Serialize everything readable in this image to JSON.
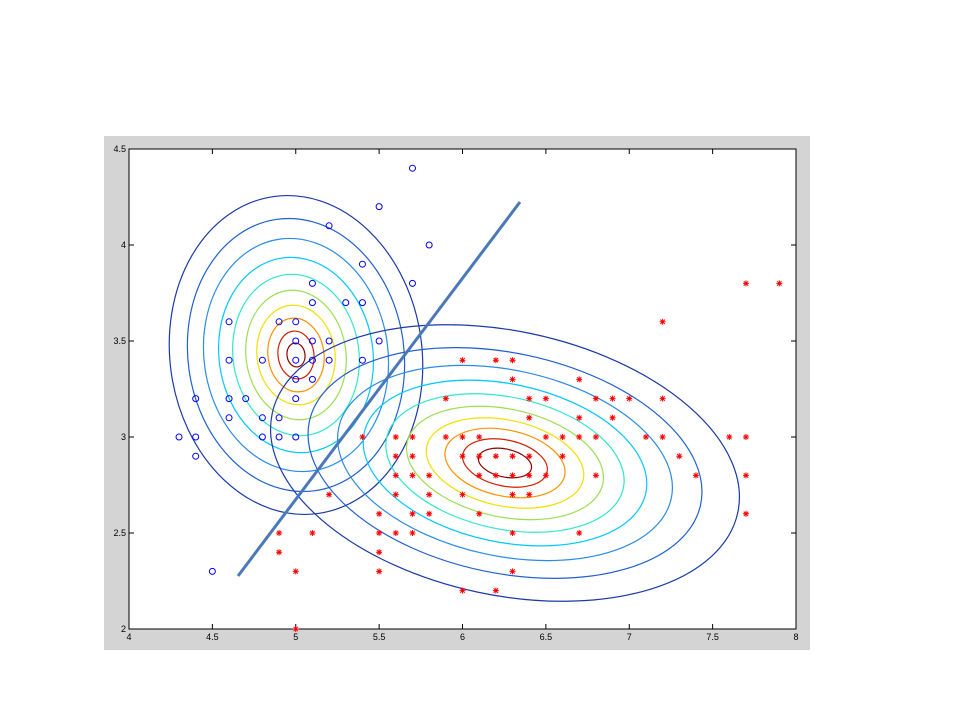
{
  "chart_data": {
    "type": "scatter",
    "xlim": [
      4,
      8
    ],
    "ylim": [
      2,
      4.5
    ],
    "xticks": [
      4,
      4.5,
      5,
      5.5,
      6,
      6.5,
      7,
      7.5,
      8
    ],
    "yticks": [
      2,
      2.5,
      3,
      3.5,
      4,
      4.5
    ],
    "series": [
      {
        "color": "#0000ff",
        "marker": "circle",
        "x": [
          5.7,
          5.5,
          5.2,
          5.8,
          5.4,
          5.1,
          5.7,
          5.1,
          5.3,
          5.4,
          4.6,
          5.0,
          4.9,
          5.0,
          5.1,
          5.2,
          5.5,
          4.6,
          4.8,
          5.0,
          5.1,
          5.2,
          5.4,
          5.0,
          5.1,
          4.4,
          4.6,
          4.7,
          5.0,
          4.6,
          4.8,
          4.9,
          4.3,
          4.4,
          4.8,
          4.9,
          5.0,
          4.4,
          4.5
        ],
        "values": [
          4.4,
          4.2,
          4.1,
          4.0,
          3.9,
          3.8,
          3.8,
          3.7,
          3.7,
          3.7,
          3.6,
          3.6,
          3.6,
          3.5,
          3.5,
          3.5,
          3.5,
          3.4,
          3.4,
          3.4,
          3.4,
          3.4,
          3.4,
          3.3,
          3.3,
          3.2,
          3.2,
          3.2,
          3.2,
          3.1,
          3.1,
          3.1,
          3.0,
          3.0,
          3.0,
          3.0,
          3.0,
          2.9,
          2.3
        ]
      },
      {
        "color": "#ff0000",
        "marker": "star",
        "x": [
          7.7,
          7.9,
          7.2,
          6.0,
          6.2,
          6.3,
          6.3,
          6.7,
          5.9,
          6.4,
          6.5,
          6.8,
          6.9,
          7.0,
          7.2,
          6.4,
          6.7,
          6.9,
          5.4,
          5.6,
          5.7,
          5.9,
          6.0,
          6.1,
          6.5,
          6.6,
          6.7,
          6.8,
          7.1,
          7.2,
          7.6,
          7.7,
          5.6,
          5.7,
          6.0,
          6.1,
          6.2,
          6.3,
          6.4,
          6.6,
          7.3,
          5.6,
          5.7,
          5.8,
          6.1,
          6.2,
          6.3,
          6.4,
          6.5,
          6.8,
          7.4,
          7.7,
          5.2,
          5.6,
          5.8,
          6.0,
          6.3,
          6.4,
          5.5,
          5.7,
          5.8,
          6.1,
          7.7,
          4.9,
          5.1,
          5.5,
          5.6,
          5.7,
          6.3,
          6.7,
          4.9,
          5.5,
          5.0,
          5.5,
          6.3,
          6.0,
          6.2,
          5.0
        ],
        "values": [
          3.8,
          3.8,
          3.6,
          3.4,
          3.4,
          3.4,
          3.3,
          3.3,
          3.2,
          3.2,
          3.2,
          3.2,
          3.2,
          3.2,
          3.2,
          3.1,
          3.1,
          3.1,
          3.0,
          3.0,
          3.0,
          3.0,
          3.0,
          3.0,
          3.0,
          3.0,
          3.0,
          3.0,
          3.0,
          3.0,
          3.0,
          3.0,
          2.9,
          2.9,
          2.9,
          2.9,
          2.9,
          2.9,
          2.9,
          2.9,
          2.9,
          2.8,
          2.8,
          2.8,
          2.8,
          2.8,
          2.8,
          2.8,
          2.8,
          2.8,
          2.8,
          2.8,
          2.7,
          2.7,
          2.7,
          2.7,
          2.7,
          2.7,
          2.6,
          2.6,
          2.6,
          2.6,
          2.6,
          2.5,
          2.5,
          2.5,
          2.5,
          2.5,
          2.5,
          2.5,
          2.4,
          2.4,
          2.3,
          2.3,
          2.3,
          2.2,
          2.2,
          2.0
        ]
      }
    ]
  }
}
